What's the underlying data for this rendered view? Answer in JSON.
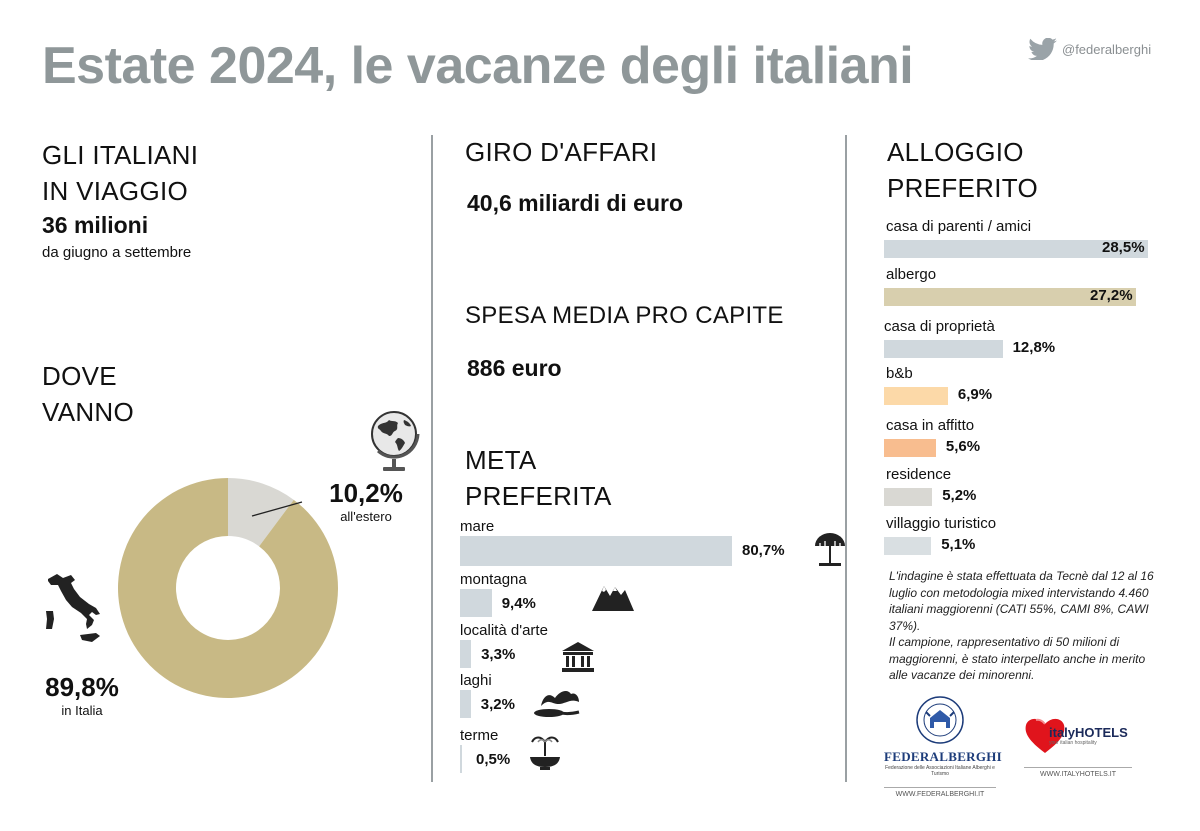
{
  "title": "Estate 2024, le vacanze degli italiani",
  "twitter_handle": "@federalberghi",
  "travelers": {
    "heading_line1": "GLI ITALIANI",
    "heading_line2": "IN VIAGGIO",
    "value": "36 milioni",
    "period": "da giugno a settembre"
  },
  "where": {
    "heading_line1": "DOVE",
    "heading_line2": "VANNO",
    "abroad_label": "10,2%",
    "abroad_caption": "all'estero",
    "italy_label": "89,8%",
    "italy_caption": "in Italia"
  },
  "turnover": {
    "heading": "GIRO D'AFFARI",
    "value": "40,6 miliardi di euro"
  },
  "spending": {
    "heading": "SPESA MEDIA PRO CAPITE",
    "value": "886 euro"
  },
  "destination": {
    "heading_line1": "META",
    "heading_line2": "PREFERITA"
  },
  "lodging": {
    "heading_line1": "ALLOGGIO",
    "heading_line2": "PREFERITO"
  },
  "survey_note": "L'indagine è stata effettuata da Tecnè dal 12 al 16 luglio con metodologia mixed intervistando 4.460 italiani maggiorenni (CATI 55%, CAMI 8%, CAWI 37%).",
  "sample_note": "Il campione, rappresentativo di 50 milioni di maggiorenni, è stato interpellato anche in merito alle vacanze dei minorenni.",
  "logos": {
    "federalberghi_name": "FEDERALBERGHI",
    "federalberghi_sub": "Federazione delle Associazioni Italiane Alberghi e Turismo",
    "federalberghi_ring": "L'OSPITALITÀ ITALIANA",
    "federalberghi_url": "WWW.FEDERALBERGHI.IT",
    "italyhotels_name": "italyHOTELS",
    "italyhotels_tag": "your italian hospitality",
    "italyhotels_url": "WWW.ITALYHOTELS.IT"
  },
  "colors": {
    "gold": "#c8b985",
    "gray_light": "#d9d8d3",
    "blue_gray": "#d0d8dd",
    "peach": "#fcd9a8",
    "orange": "#f8bd8f",
    "title_gray": "#8f9799"
  },
  "chart_data": [
    {
      "type": "pie",
      "title": "DOVE VANNO",
      "categories": [
        "in Italia",
        "all'estero"
      ],
      "values": [
        89.8,
        10.2
      ],
      "labels": [
        "89,8%",
        "10,2%"
      ]
    },
    {
      "type": "bar",
      "orientation": "horizontal",
      "title": "META PREFERITA",
      "categories": [
        "mare",
        "montagna",
        "località d'arte",
        "laghi",
        "terme"
      ],
      "values": [
        80.7,
        9.4,
        3.3,
        3.2,
        0.5
      ],
      "labels": [
        "80,7%",
        "9,4%",
        "3,3%",
        "3,2%",
        "0,5%"
      ],
      "icons": [
        "beach-umbrella-icon",
        "mountains-icon",
        "temple-icon",
        "lake-icon",
        "fountain-icon"
      ]
    },
    {
      "type": "bar",
      "orientation": "horizontal",
      "title": "ALLOGGIO PREFERITO",
      "categories": [
        "casa di parenti / amici",
        "albergo",
        "casa di proprietà",
        "b&b",
        "casa in affitto",
        "residence",
        "villaggio turistico"
      ],
      "values": [
        28.5,
        27.2,
        12.8,
        6.9,
        5.6,
        5.2,
        5.1
      ],
      "labels": [
        "28,5%",
        "27,2%",
        "12,8%",
        "6,9%",
        "5,6%",
        "5,2%",
        "5,1%"
      ],
      "colors": [
        "#d0d8dd",
        "#d8cfae",
        "#d0d8dd",
        "#fcd9a8",
        "#f8bd8f",
        "#d9d8d3",
        "#d9dfe2"
      ]
    }
  ]
}
